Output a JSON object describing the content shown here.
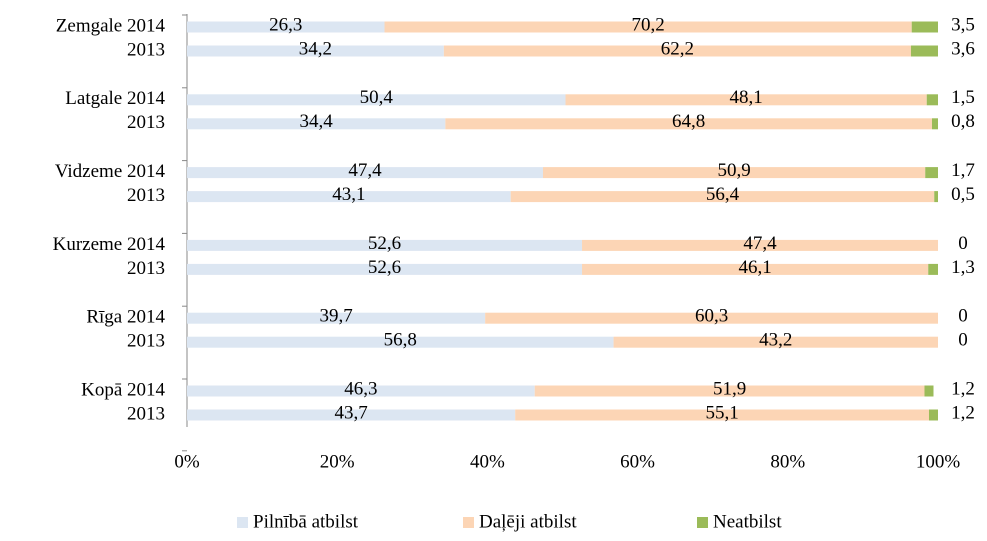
{
  "chart_data": {
    "type": "bar",
    "orientation": "horizontal",
    "stacked": true,
    "categories": [
      "Zemgale 2014",
      "2013",
      "Latgale 2014",
      "2013",
      "Vidzeme 2014",
      "2013",
      "Kurzeme 2014",
      "2013",
      "Rīga 2014",
      "2013",
      "Kopā 2014",
      "2013"
    ],
    "series": [
      {
        "name": "Pilnībā atbilst",
        "color": "#dce6f2",
        "values": [
          26.3,
          34.2,
          50.4,
          34.4,
          47.4,
          43.1,
          52.6,
          52.6,
          39.7,
          56.8,
          46.3,
          43.7
        ],
        "value_labels": [
          "26,3",
          "34,2",
          "50,4",
          "34,4",
          "47,4",
          "43,1",
          "52,6",
          "52,6",
          "39,7",
          "56,8",
          "46,3",
          "43,7"
        ]
      },
      {
        "name": "Daļēji atbilst",
        "color": "#fcd5b5",
        "values": [
          70.2,
          62.2,
          48.1,
          64.8,
          50.9,
          56.4,
          47.4,
          46.1,
          60.3,
          43.2,
          51.9,
          55.1
        ],
        "value_labels": [
          "70,2",
          "62,2",
          "48,1",
          "64,8",
          "50,9",
          "56,4",
          "47,4",
          "46,1",
          "60,3",
          "43,2",
          "51,9",
          "55,1"
        ]
      },
      {
        "name": "Neatbilst",
        "color": "#9bbb59",
        "values": [
          3.5,
          3.6,
          1.5,
          0.8,
          1.7,
          0.5,
          0,
          1.3,
          0,
          0,
          1.2,
          1.2
        ],
        "value_labels": [
          "3,5",
          "3,6",
          "1,5",
          "0,8",
          "1,7",
          "0,5",
          "0",
          "1,3",
          "0",
          "0",
          "1,2",
          "1,2"
        ]
      }
    ],
    "xlim": [
      0,
      100
    ],
    "xticks": [
      {
        "value": 0,
        "label": "0%"
      },
      {
        "value": 20,
        "label": "20%"
      },
      {
        "value": 40,
        "label": "40%"
      },
      {
        "value": 60,
        "label": "60%"
      },
      {
        "value": 80,
        "label": "80%"
      },
      {
        "value": 100,
        "label": "100%"
      }
    ],
    "grid": false,
    "legend": "bottom"
  }
}
